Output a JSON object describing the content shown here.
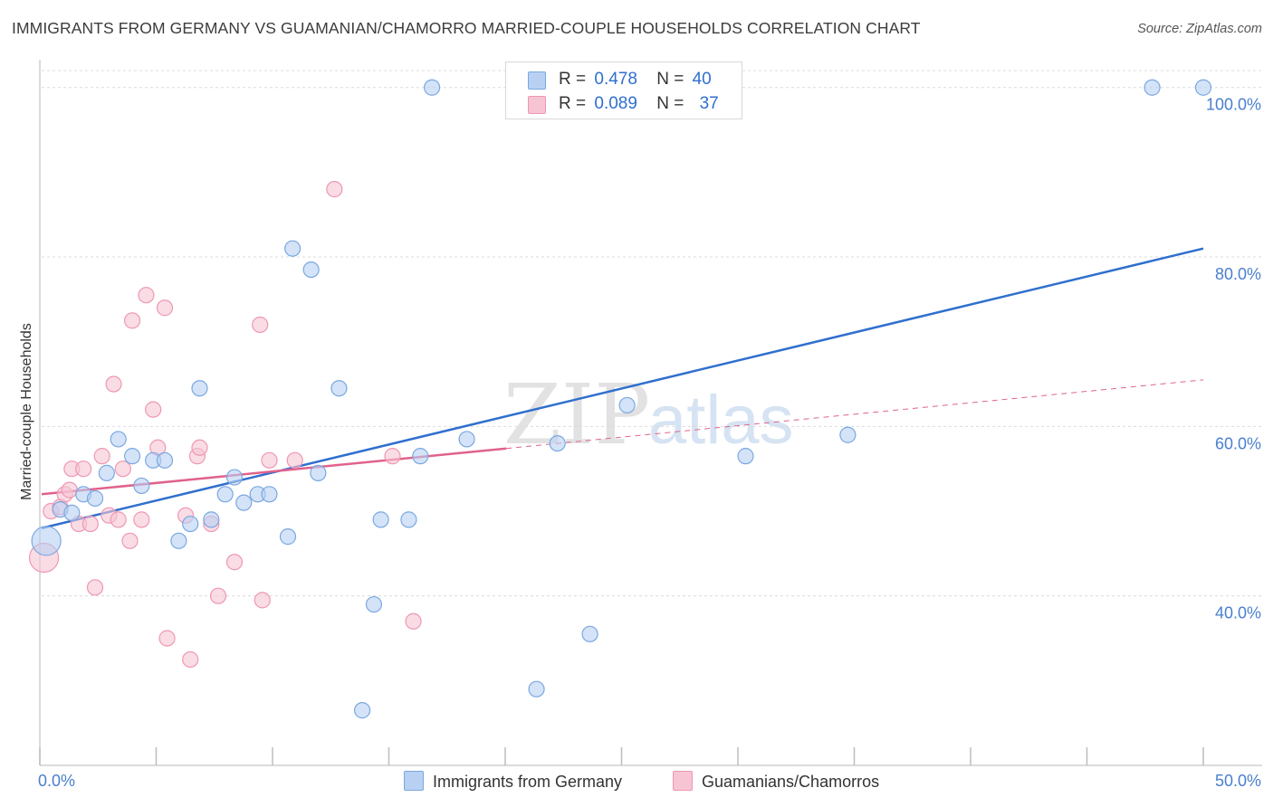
{
  "title": "IMMIGRANTS FROM GERMANY VS GUAMANIAN/CHAMORRO MARRIED-COUPLE HOUSEHOLDS CORRELATION CHART",
  "source": "Source: ZipAtlas.com",
  "watermark": {
    "zip": "ZIP",
    "atlas": "atlas"
  },
  "colors": {
    "blue_fill": "#b8d1f3",
    "blue_stroke": "#7aa8e0",
    "blue_line": "#2f6fce",
    "pink_fill": "#f7c4d3",
    "pink_stroke": "#ee98b2",
    "pink_line": "#e0628c",
    "tick_label": "#4a7fcf"
  },
  "legend": {
    "r_label": "R =",
    "n_label": "N =",
    "series": [
      {
        "r": "0.478",
        "n": "40"
      },
      {
        "r": "0.089",
        "n": "37"
      }
    ]
  },
  "chart_data": {
    "type": "scatter",
    "title": "IMMIGRANTS FROM GERMANY VS GUAMANIAN/CHAMORRO MARRIED-COUPLE HOUSEHOLDS CORRELATION CHART",
    "xlabel": "",
    "ylabel": "Married-couple Households",
    "xlim": [
      0,
      50
    ],
    "ylim": [
      20,
      102
    ],
    "x_tick_labels": [
      "0.0%",
      "50.0%"
    ],
    "y_ticks": [
      40,
      60,
      80,
      100
    ],
    "y_tick_labels": [
      "40.0%",
      "60.0%",
      "80.0%",
      "100.0%"
    ],
    "legend_position": "top-center",
    "series": [
      {
        "name": "Immigrants from Germany",
        "r": 0.478,
        "n": 40,
        "trend": {
          "x": [
            0,
            50
          ],
          "y": [
            48.0,
            81.0
          ],
          "style": "solid"
        },
        "points": [
          {
            "x": 0.2,
            "y": 46.5,
            "big": true
          },
          {
            "x": 0.8,
            "y": 50.2
          },
          {
            "x": 1.3,
            "y": 49.8
          },
          {
            "x": 1.8,
            "y": 52.0
          },
          {
            "x": 2.3,
            "y": 51.5
          },
          {
            "x": 2.8,
            "y": 54.5
          },
          {
            "x": 3.3,
            "y": 58.5
          },
          {
            "x": 3.9,
            "y": 56.5
          },
          {
            "x": 4.3,
            "y": 53.0
          },
          {
            "x": 4.8,
            "y": 56.0
          },
          {
            "x": 5.3,
            "y": 56.0
          },
          {
            "x": 5.9,
            "y": 46.5
          },
          {
            "x": 6.4,
            "y": 48.5
          },
          {
            "x": 6.8,
            "y": 64.5
          },
          {
            "x": 7.3,
            "y": 49.0
          },
          {
            "x": 7.9,
            "y": 52.0
          },
          {
            "x": 8.3,
            "y": 54.0
          },
          {
            "x": 8.7,
            "y": 51.0
          },
          {
            "x": 9.3,
            "y": 52.0
          },
          {
            "x": 9.8,
            "y": 52.0
          },
          {
            "x": 10.6,
            "y": 47.0
          },
          {
            "x": 10.8,
            "y": 81.0
          },
          {
            "x": 11.6,
            "y": 78.5
          },
          {
            "x": 11.9,
            "y": 54.5
          },
          {
            "x": 12.8,
            "y": 64.5
          },
          {
            "x": 13.8,
            "y": 26.5
          },
          {
            "x": 14.3,
            "y": 39.0
          },
          {
            "x": 14.6,
            "y": 49.0
          },
          {
            "x": 15.8,
            "y": 49.0
          },
          {
            "x": 16.3,
            "y": 56.5
          },
          {
            "x": 16.8,
            "y": 100.0
          },
          {
            "x": 18.3,
            "y": 58.5
          },
          {
            "x": 21.3,
            "y": 29.0
          },
          {
            "x": 22.2,
            "y": 58.0
          },
          {
            "x": 23.6,
            "y": 35.5
          },
          {
            "x": 25.2,
            "y": 62.5
          },
          {
            "x": 30.3,
            "y": 56.5
          },
          {
            "x": 34.7,
            "y": 59.0
          },
          {
            "x": 47.8,
            "y": 100.0
          },
          {
            "x": 50.0,
            "y": 100.0
          }
        ]
      },
      {
        "name": "Guamanians/Chamorros",
        "r": 0.089,
        "n": 37,
        "trend": {
          "x": [
            0,
            20
          ],
          "y": [
            52.0,
            57.4
          ],
          "style": "solid",
          "extension": {
            "x": [
              20,
              50
            ],
            "y": [
              57.4,
              65.5
            ],
            "style": "dashed"
          }
        },
        "points": [
          {
            "x": 0.1,
            "y": 44.5,
            "big": true
          },
          {
            "x": 0.4,
            "y": 50.0
          },
          {
            "x": 0.8,
            "y": 50.5
          },
          {
            "x": 1.0,
            "y": 52.0
          },
          {
            "x": 1.2,
            "y": 52.5
          },
          {
            "x": 1.3,
            "y": 55.0
          },
          {
            "x": 1.6,
            "y": 48.5
          },
          {
            "x": 1.8,
            "y": 55.0
          },
          {
            "x": 2.1,
            "y": 48.5
          },
          {
            "x": 2.3,
            "y": 41.0
          },
          {
            "x": 2.6,
            "y": 56.5
          },
          {
            "x": 2.9,
            "y": 49.5
          },
          {
            "x": 3.1,
            "y": 65.0
          },
          {
            "x": 3.3,
            "y": 49.0
          },
          {
            "x": 3.5,
            "y": 55.0
          },
          {
            "x": 3.8,
            "y": 46.5
          },
          {
            "x": 3.9,
            "y": 72.5
          },
          {
            "x": 4.3,
            "y": 49.0
          },
          {
            "x": 4.5,
            "y": 75.5
          },
          {
            "x": 4.8,
            "y": 62.0
          },
          {
            "x": 5.0,
            "y": 57.5
          },
          {
            "x": 5.3,
            "y": 74.0
          },
          {
            "x": 5.4,
            "y": 35.0
          },
          {
            "x": 6.2,
            "y": 49.5
          },
          {
            "x": 6.4,
            "y": 32.5
          },
          {
            "x": 6.7,
            "y": 56.5
          },
          {
            "x": 6.8,
            "y": 57.5
          },
          {
            "x": 7.3,
            "y": 48.5
          },
          {
            "x": 7.6,
            "y": 40.0
          },
          {
            "x": 8.3,
            "y": 44.0
          },
          {
            "x": 9.4,
            "y": 72.0
          },
          {
            "x": 9.5,
            "y": 39.5
          },
          {
            "x": 9.8,
            "y": 56.0
          },
          {
            "x": 10.9,
            "y": 56.0
          },
          {
            "x": 12.6,
            "y": 88.0
          },
          {
            "x": 15.1,
            "y": 56.5
          },
          {
            "x": 16.0,
            "y": 37.0
          }
        ]
      }
    ]
  }
}
